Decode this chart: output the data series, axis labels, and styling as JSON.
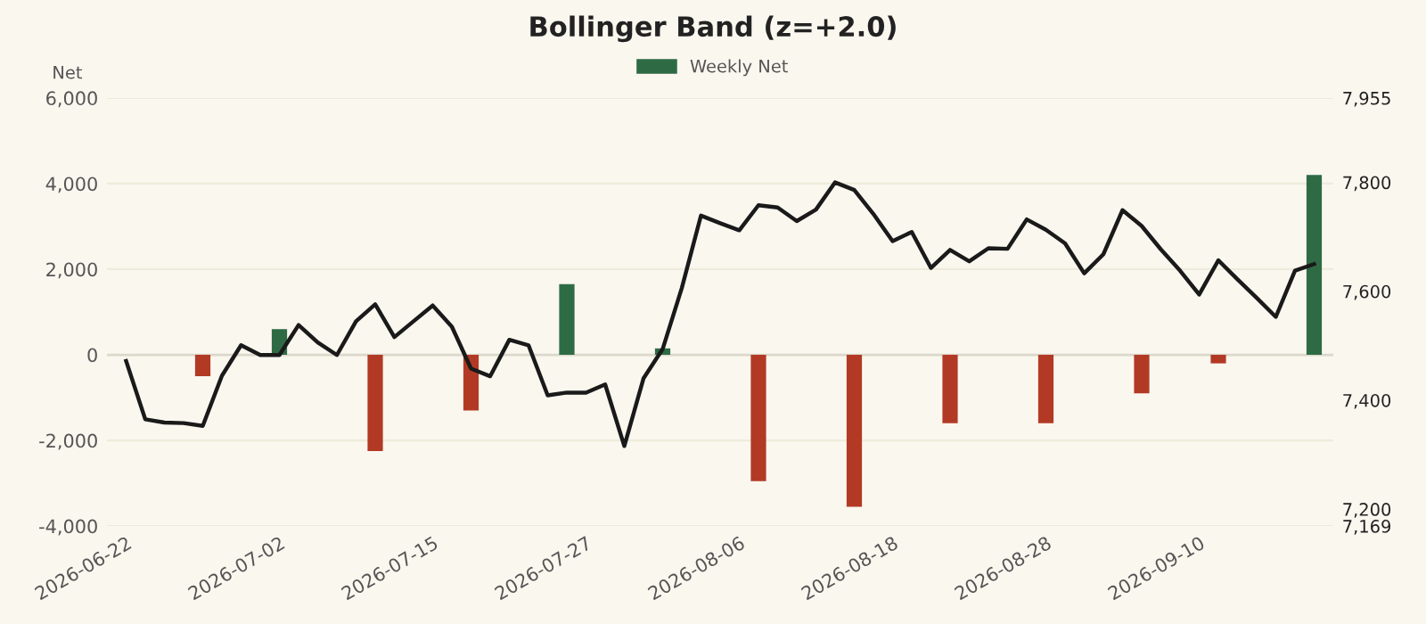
{
  "chart_data": {
    "type": "bar",
    "title": "Bollinger Band (z=+2.0)",
    "ylabel": "Net",
    "categories": [
      "2026-06-22",
      null,
      null,
      null,
      null,
      null,
      null,
      null,
      "2026-07-02",
      null,
      null,
      null,
      null,
      null,
      null,
      null,
      "2026-07-15",
      null,
      null,
      null,
      null,
      null,
      null,
      null,
      "2026-07-27",
      null,
      null,
      null,
      null,
      null,
      null,
      null,
      "2026-08-06",
      null,
      null,
      null,
      null,
      null,
      null,
      null,
      "2026-08-18",
      null,
      null,
      null,
      null,
      null,
      null,
      null,
      "2026-08-28",
      null,
      null,
      null,
      null,
      null,
      null,
      null,
      "2026-09-10",
      null,
      null,
      null,
      null,
      null,
      null
    ],
    "series": [
      {
        "name": "Weekly Net",
        "color": "#2e6b45",
        "colors": [
          "#b23a25",
          null,
          null,
          null,
          "#b23a25",
          null,
          null,
          null,
          "#2e6b45",
          null,
          null,
          null,
          null,
          "#b23a25",
          null,
          null,
          null,
          null,
          "#b23a25",
          null,
          null,
          null,
          null,
          "#2e6b45",
          null,
          null,
          null,
          null,
          "#2e6b45",
          null,
          null,
          null,
          null,
          "#b23a25",
          null,
          null,
          null,
          null,
          "#b23a25",
          null,
          null,
          null,
          null,
          "#b23a25",
          null,
          null,
          null,
          null,
          "#b23a25",
          null,
          null,
          null,
          null,
          "#b23a25",
          null,
          null,
          null,
          "#b23a25",
          null,
          null,
          null,
          null,
          "#2e6b45"
        ],
        "values": [
          null,
          null,
          null,
          null,
          -500,
          null,
          null,
          null,
          600,
          null,
          null,
          null,
          null,
          -2250,
          null,
          null,
          null,
          null,
          -1300,
          null,
          null,
          null,
          null,
          1650,
          null,
          null,
          null,
          null,
          150,
          null,
          null,
          null,
          null,
          -2950,
          null,
          null,
          null,
          null,
          -3550,
          null,
          null,
          null,
          null,
          -1600,
          null,
          null,
          null,
          null,
          -1600,
          null,
          null,
          null,
          null,
          -900,
          null,
          null,
          null,
          -200,
          null,
          null,
          null,
          null,
          4200
        ]
      },
      {
        "type": "line",
        "axis": "y2",
        "color": "#1a1a1a",
        "marker": "none",
        "line_style": "solid",
        "values": [
          7472,
          7365,
          7359,
          7358,
          7353,
          7445,
          7501,
          7483,
          7483,
          7538,
          7506,
          7483,
          7545,
          7576,
          7516,
          7545,
          7574,
          7535,
          7458,
          7444,
          7511,
          7501,
          7409,
          7414,
          7414,
          7429,
          7316,
          7440,
          7494,
          7606,
          7739,
          7725,
          7712,
          7758,
          7754,
          7729,
          7750,
          7800,
          7786,
          7742,
          7692,
          7709,
          7643,
          7676,
          7655,
          7679,
          7678,
          7732,
          7713,
          7688,
          7633,
          7668,
          7749,
          7720,
          7677,
          7638,
          7594,
          7657,
          7622,
          7588,
          7553,
          7638,
          7650
        ]
      }
    ],
    "ylim": [
      -4000,
      6000
    ],
    "yticks": [
      {
        "value": -4000,
        "label": "-4,000"
      },
      {
        "value": -2000,
        "label": "-2,000"
      },
      0,
      {
        "value": 2000,
        "label": "2,000"
      },
      {
        "value": 4000,
        "label": "4,000"
      },
      {
        "value": 6000,
        "label": "6,000"
      }
    ],
    "y2lim": [
      7169,
      7955
    ],
    "y2ticks": [
      {
        "value": 7169,
        "label": "7,169"
      },
      {
        "value": 7200,
        "label": "7,200"
      },
      {
        "value": 7400,
        "label": "7,400"
      },
      {
        "value": 7600,
        "label": "7,600"
      },
      {
        "value": 7800,
        "label": "7,800"
      },
      {
        "value": 7955,
        "label": "7,955"
      }
    ],
    "ref_lines": [
      {
        "axis": "y",
        "value": 0,
        "color": "#dcd8cc"
      }
    ],
    "grid": "y",
    "legend": "top"
  }
}
